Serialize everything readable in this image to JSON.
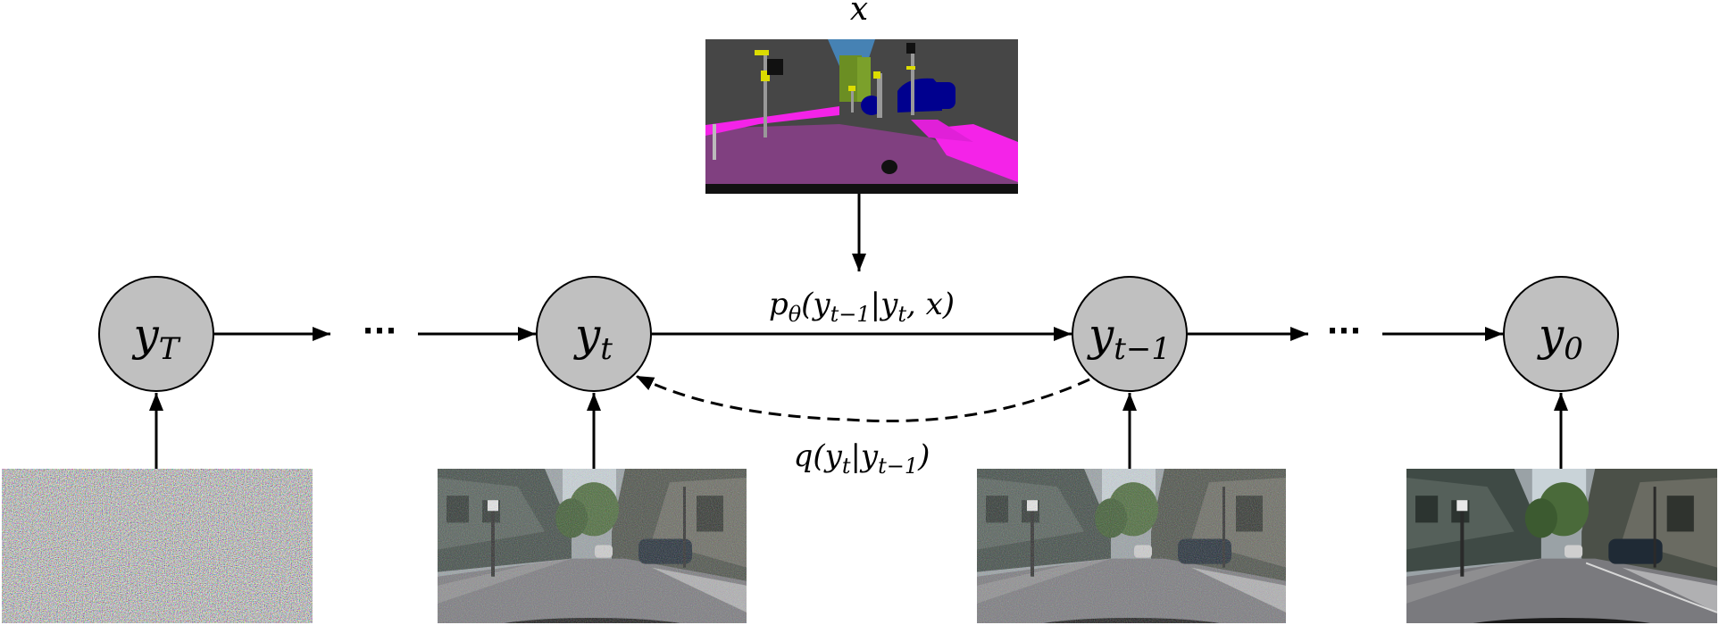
{
  "diagram": {
    "top_label": "x",
    "nodes": [
      {
        "id": "yT",
        "base": "y",
        "sub": "T"
      },
      {
        "id": "yt",
        "base": "y",
        "sub": "t"
      },
      {
        "id": "yt1",
        "base": "y",
        "sub": "t−1"
      },
      {
        "id": "y0",
        "base": "y",
        "sub": "0"
      }
    ],
    "ellipsis": "···",
    "forward_label": {
      "pre": "p",
      "theta": "θ",
      "post": "(y",
      "s1": "t−1",
      "mid": "|y",
      "s2": "t",
      "end": ", x)"
    },
    "reverse_label": {
      "pre": "q(y",
      "s1": "t",
      "mid": "|y",
      "s2": "t−1",
      "end": ")"
    },
    "images": [
      {
        "kind": "segmentation-map"
      },
      {
        "kind": "pure-noise"
      },
      {
        "kind": "noisy-street-scene"
      },
      {
        "kind": "noisy-street-scene"
      },
      {
        "kind": "clean-street-scene"
      }
    ],
    "colors": {
      "node_fill": "#c0c0c0",
      "road": "#804080",
      "sidewalk": "#f423e8",
      "car": "#00008e",
      "vegetation": "#6b8e23",
      "sky": "#4682b4",
      "building": "#464646",
      "sign": "#dcdc00"
    }
  }
}
